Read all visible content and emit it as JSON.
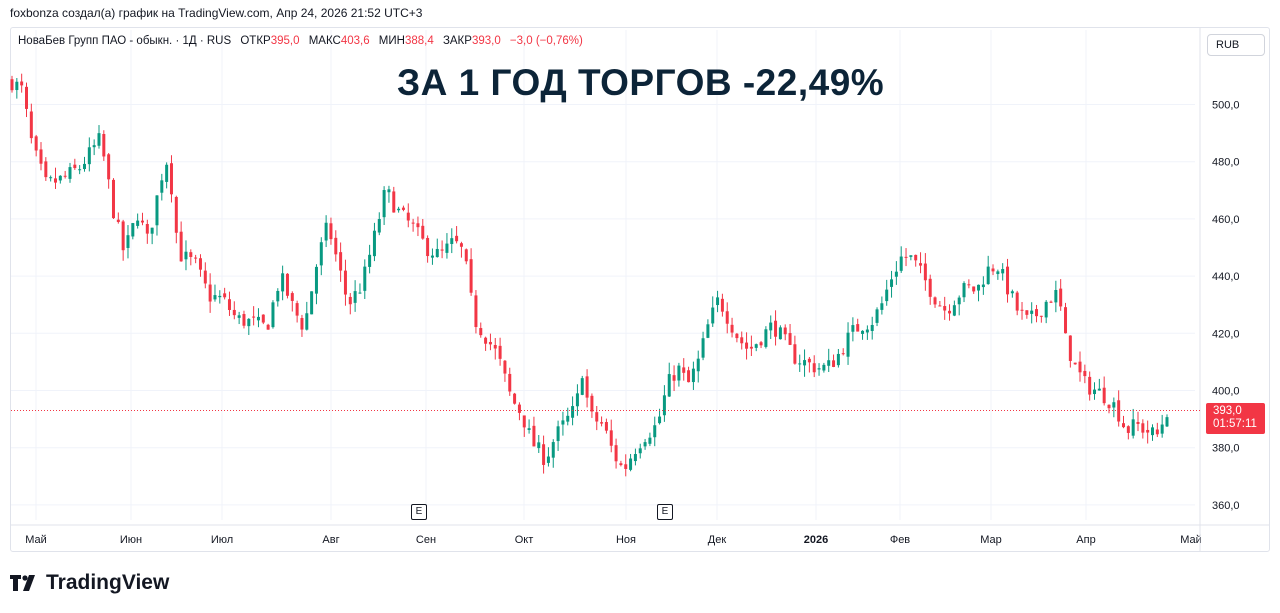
{
  "header": {
    "attribution": "foxbonza создал(а) график на TradingView.com, Апр 24, 2026 21:52 UTC+3"
  },
  "legend": {
    "symbol": "НоваБев Групп ПАО - обыкн. · 1Д · RUS",
    "open_label": "ОТКР",
    "open_value": "395,0",
    "high_label": "МАКС",
    "high_value": "403,6",
    "low_label": "МИН",
    "low_value": "388,4",
    "close_label": "ЗАКР",
    "close_value": "393,0",
    "change": "−3,0 (−0,76%)"
  },
  "headline": "ЗА 1 ГОД ТОРГОВ -22,49%",
  "currency_button": "RUB",
  "price_badge": {
    "price": "393,0",
    "countdown": "01:57:11"
  },
  "earnings_marker": "E",
  "brand": "TradingView",
  "colors": {
    "up": "#089981",
    "down": "#f23645",
    "grid": "#f0f3fa",
    "headline": "#0c2438"
  },
  "chart_data": {
    "type": "candlestick",
    "y_ticks": [
      "500,0",
      "480,0",
      "460,0",
      "440,0",
      "420,0",
      "400,0",
      "380,0",
      "360,0"
    ],
    "x_ticks": [
      "Май",
      "Июн",
      "Июл",
      "Авг",
      "Сен",
      "Окт",
      "Ноя",
      "Дек",
      "2026",
      "Фев",
      "Мар",
      "Апр",
      "Май"
    ],
    "ylim": [
      355,
      515
    ],
    "current_price": 393.0,
    "earnings_events": [
      "Сен",
      "Ноя"
    ],
    "close_path": [
      {
        "t": 0.0,
        "c": 508
      },
      {
        "t": 0.3,
        "c": 505
      },
      {
        "t": 0.6,
        "c": 485
      },
      {
        "t": 1.0,
        "c": 472
      },
      {
        "t": 1.5,
        "c": 474
      },
      {
        "t": 2.0,
        "c": 478
      },
      {
        "t": 2.6,
        "c": 488
      },
      {
        "t": 3.0,
        "c": 462
      },
      {
        "t": 3.3,
        "c": 448
      },
      {
        "t": 3.7,
        "c": 462
      },
      {
        "t": 4.0,
        "c": 452
      },
      {
        "t": 4.4,
        "c": 475
      },
      {
        "t": 4.6,
        "c": 482
      },
      {
        "t": 4.9,
        "c": 448
      },
      {
        "t": 5.4,
        "c": 444
      },
      {
        "t": 5.8,
        "c": 433
      },
      {
        "t": 6.2,
        "c": 432
      },
      {
        "t": 6.6,
        "c": 425
      },
      {
        "t": 7.0,
        "c": 424
      },
      {
        "t": 7.5,
        "c": 422
      },
      {
        "t": 7.9,
        "c": 440
      },
      {
        "t": 8.3,
        "c": 428
      },
      {
        "t": 8.6,
        "c": 422
      },
      {
        "t": 9.0,
        "c": 446
      },
      {
        "t": 9.3,
        "c": 458
      },
      {
        "t": 9.6,
        "c": 444
      },
      {
        "t": 9.9,
        "c": 430
      },
      {
        "t": 10.3,
        "c": 437
      },
      {
        "t": 10.7,
        "c": 455
      },
      {
        "t": 11.0,
        "c": 470
      },
      {
        "t": 11.4,
        "c": 462
      },
      {
        "t": 11.8,
        "c": 457
      },
      {
        "t": 12.2,
        "c": 450
      },
      {
        "t": 12.6,
        "c": 447
      },
      {
        "t": 13.0,
        "c": 452
      },
      {
        "t": 13.3,
        "c": 448
      },
      {
        "t": 13.6,
        "c": 425
      },
      {
        "t": 14.0,
        "c": 418
      },
      {
        "t": 14.3,
        "c": 412
      },
      {
        "t": 14.7,
        "c": 397
      },
      {
        "t": 15.0,
        "c": 392
      },
      {
        "t": 15.3,
        "c": 382
      },
      {
        "t": 15.7,
        "c": 376
      },
      {
        "t": 16.0,
        "c": 384
      },
      {
        "t": 16.3,
        "c": 389
      },
      {
        "t": 16.6,
        "c": 394
      },
      {
        "t": 16.8,
        "c": 408
      },
      {
        "t": 17.0,
        "c": 391
      },
      {
        "t": 17.4,
        "c": 388
      },
      {
        "t": 17.7,
        "c": 378
      },
      {
        "t": 18.0,
        "c": 372
      },
      {
        "t": 18.3,
        "c": 379
      },
      {
        "t": 18.6,
        "c": 384
      },
      {
        "t": 19.0,
        "c": 388
      },
      {
        "t": 19.3,
        "c": 402
      },
      {
        "t": 19.6,
        "c": 408
      },
      {
        "t": 19.9,
        "c": 402
      },
      {
        "t": 20.2,
        "c": 410
      },
      {
        "t": 20.5,
        "c": 423
      },
      {
        "t": 20.8,
        "c": 432
      },
      {
        "t": 21.1,
        "c": 425
      },
      {
        "t": 21.4,
        "c": 418
      },
      {
        "t": 21.7,
        "c": 414
      },
      {
        "t": 22.0,
        "c": 418
      },
      {
        "t": 22.4,
        "c": 423
      },
      {
        "t": 22.7,
        "c": 418
      },
      {
        "t": 23.0,
        "c": 412
      },
      {
        "t": 23.3,
        "c": 410
      },
      {
        "t": 23.7,
        "c": 408
      },
      {
        "t": 24.0,
        "c": 408
      },
      {
        "t": 24.3,
        "c": 412
      },
      {
        "t": 24.7,
        "c": 420
      },
      {
        "t": 25.0,
        "c": 423
      },
      {
        "t": 25.3,
        "c": 424
      },
      {
        "t": 25.6,
        "c": 430
      },
      {
        "t": 25.9,
        "c": 440
      },
      {
        "t": 26.2,
        "c": 447
      },
      {
        "t": 26.5,
        "c": 446
      },
      {
        "t": 26.8,
        "c": 440
      },
      {
        "t": 27.2,
        "c": 432
      },
      {
        "t": 27.5,
        "c": 428
      },
      {
        "t": 27.8,
        "c": 433
      },
      {
        "t": 28.1,
        "c": 436
      },
      {
        "t": 28.4,
        "c": 435
      },
      {
        "t": 28.7,
        "c": 442
      },
      {
        "t": 29.0,
        "c": 444
      },
      {
        "t": 29.3,
        "c": 436
      },
      {
        "t": 29.6,
        "c": 428
      },
      {
        "t": 29.9,
        "c": 424
      },
      {
        "t": 30.2,
        "c": 427
      },
      {
        "t": 30.5,
        "c": 432
      },
      {
        "t": 30.8,
        "c": 434
      },
      {
        "t": 31.0,
        "c": 418
      },
      {
        "t": 31.3,
        "c": 408
      },
      {
        "t": 31.6,
        "c": 402
      },
      {
        "t": 31.9,
        "c": 400
      },
      {
        "t": 32.2,
        "c": 398
      },
      {
        "t": 32.5,
        "c": 394
      },
      {
        "t": 32.8,
        "c": 386
      },
      {
        "t": 33.1,
        "c": 388
      },
      {
        "t": 33.4,
        "c": 386
      },
      {
        "t": 33.7,
        "c": 384
      },
      {
        "t": 34.0,
        "c": 393
      }
    ]
  }
}
